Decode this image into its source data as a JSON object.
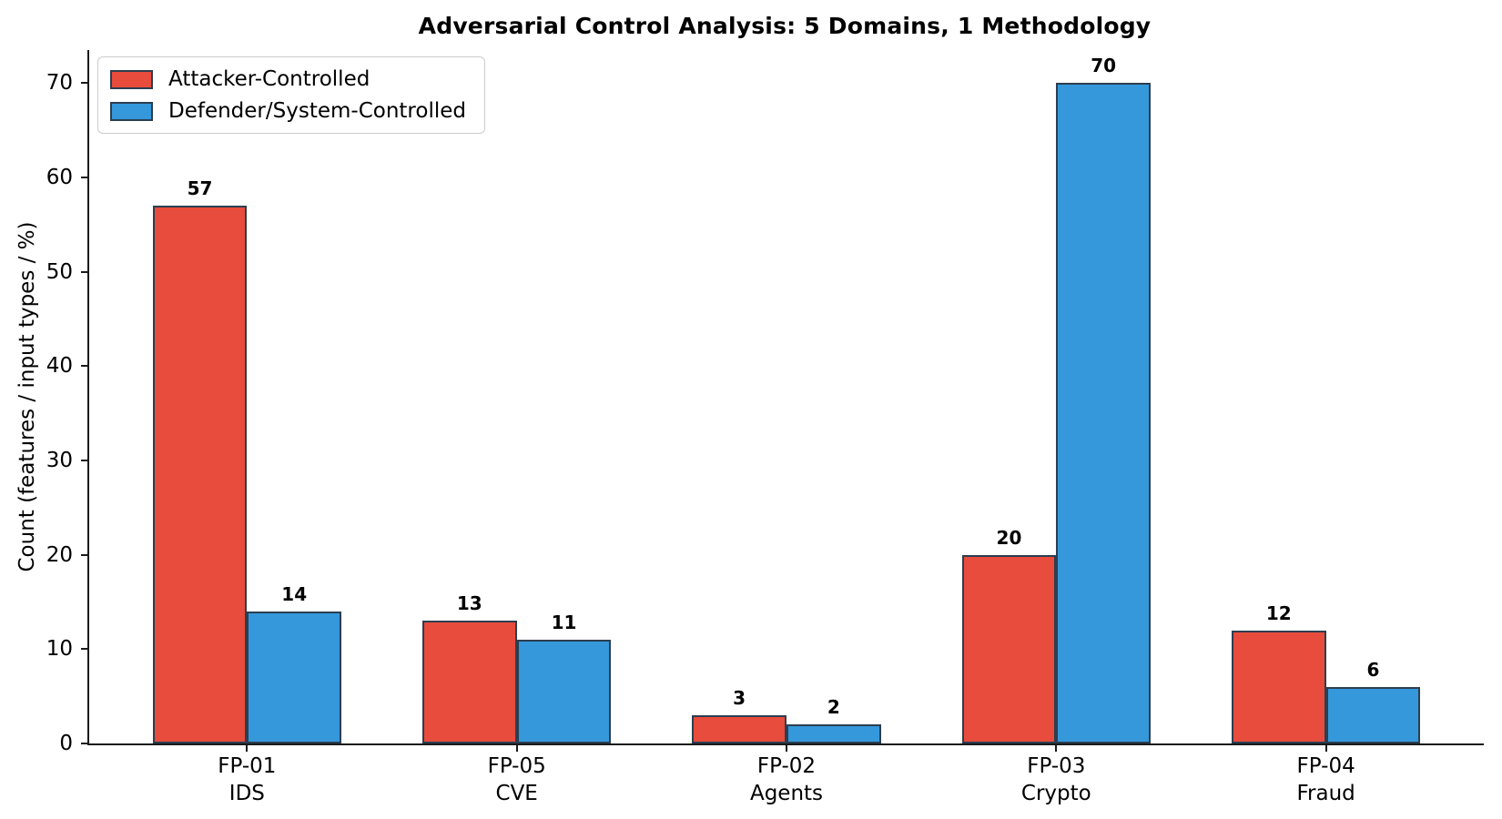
{
  "chart_data": {
    "type": "bar",
    "title": "Adversarial Control Analysis: 5 Domains, 1 Methodology",
    "xlabel": "",
    "ylabel": "Count (features / input types / %)",
    "categories": [
      {
        "id": "FP-01",
        "domain": "IDS"
      },
      {
        "id": "FP-05",
        "domain": "CVE"
      },
      {
        "id": "FP-02",
        "domain": "Agents"
      },
      {
        "id": "FP-03",
        "domain": "Crypto"
      },
      {
        "id": "FP-04",
        "domain": "Fraud"
      }
    ],
    "series": [
      {
        "name": "Attacker-Controlled",
        "color": "#e74c3c",
        "values": [
          57,
          13,
          3,
          20,
          12
        ]
      },
      {
        "name": "Defender/System-Controlled",
        "color": "#3498db",
        "values": [
          14,
          11,
          2,
          70,
          6
        ]
      }
    ],
    "value_labels": [
      [
        "57",
        "13",
        "3",
        "20",
        "12"
      ],
      [
        "14",
        "11",
        "2",
        "70",
        "6"
      ]
    ],
    "yticks": [
      "0",
      "10",
      "20",
      "30",
      "40",
      "50",
      "60",
      "70"
    ],
    "ylim": [
      0,
      73.5
    ],
    "grid": false,
    "legend_position": "upper left",
    "bar_edge_color": "#2c3e50",
    "spine_color": "#1a1a1a"
  }
}
